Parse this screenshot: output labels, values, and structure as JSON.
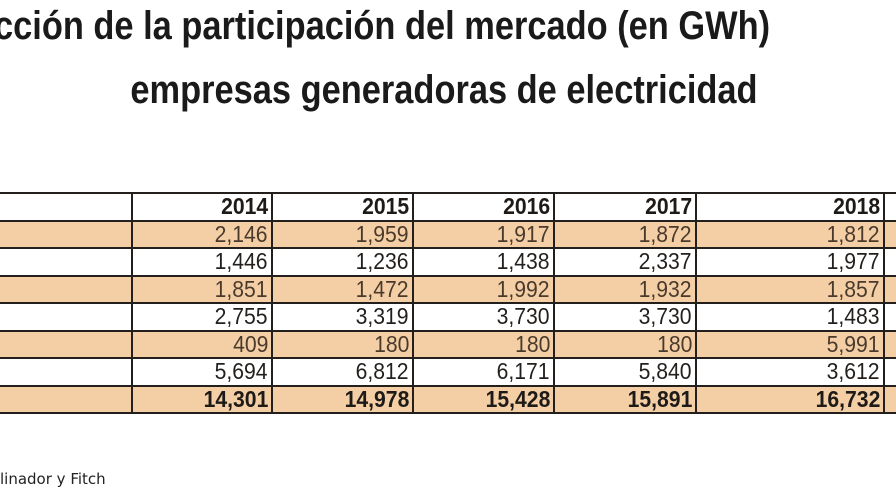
{
  "title_line1": "cción de la participación del mercado (en GWh)",
  "title_line2": "empresas generadoras de electricidad",
  "colors": {
    "band": "#f4cfa6",
    "border": "#231f1c"
  },
  "table": {
    "headers": [
      "",
      "2014",
      "2015",
      "2016",
      "2017",
      "2018",
      ""
    ],
    "rows": [
      {
        "label": "",
        "values": [
          "2,146",
          "1,959",
          "1,917",
          "1,872",
          "1,812"
        ]
      },
      {
        "label": "",
        "values": [
          "1,446",
          "1,236",
          "1,438",
          "2,337",
          "1,977"
        ]
      },
      {
        "label": "",
        "values": [
          "1,851",
          "1,472",
          "1,992",
          "1,932",
          "1,857"
        ]
      },
      {
        "label": "",
        "values": [
          "2,755",
          "3,319",
          "3,730",
          "3,730",
          "1,483"
        ]
      },
      {
        "label": "",
        "values": [
          "409",
          "180",
          "180",
          "180",
          "5,991"
        ]
      },
      {
        "label": "",
        "values": [
          "5,694",
          "6,812",
          "6,171",
          "5,840",
          "3,612"
        ]
      },
      {
        "label": "",
        "values": [
          "14,301",
          "14,978",
          "15,428",
          "15,891",
          "16,732"
        ]
      }
    ]
  },
  "source": "linador y Fitch"
}
